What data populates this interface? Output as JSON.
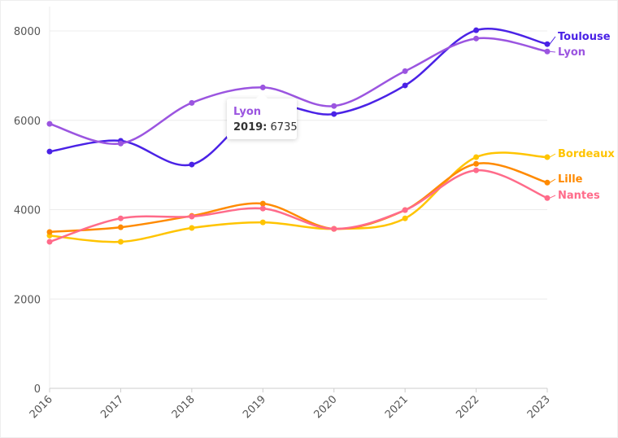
{
  "chart_data": {
    "type": "line",
    "title": "",
    "xlabel": "",
    "ylabel": "",
    "x": [
      "2016",
      "2017",
      "2018",
      "2019",
      "2020",
      "2021",
      "2022",
      "2023"
    ],
    "ylim": [
      0,
      8000
    ],
    "yticks": [
      "0",
      "2000",
      "4000",
      "6000",
      "8000"
    ],
    "grid": true,
    "legend": "end-labels-right",
    "series": [
      {
        "name": "Toulouse",
        "color": "#4a22e6",
        "values": [
          5300,
          5540,
          5010,
          6300,
          6140,
          6780,
          8015,
          7705
        ]
      },
      {
        "name": "Lyon",
        "color": "#9b55e0",
        "values": [
          5920,
          5480,
          6390,
          6735,
          6320,
          7100,
          7830,
          7540
        ]
      },
      {
        "name": "Bordeaux",
        "color": "#ffc400",
        "values": [
          3420,
          3280,
          3590,
          3715,
          3570,
          3805,
          5175,
          5175
        ]
      },
      {
        "name": "Lille",
        "color": "#ff8a00",
        "values": [
          3500,
          3605,
          3860,
          4135,
          3570,
          3990,
          5025,
          4605
        ]
      },
      {
        "name": "Nantes",
        "color": "#ff6b8a",
        "values": [
          3280,
          3805,
          3845,
          4025,
          3570,
          3990,
          4880,
          4260
        ]
      }
    ],
    "tooltip": {
      "series": "Lyon",
      "year_label": "2019:",
      "value": "6735"
    }
  }
}
